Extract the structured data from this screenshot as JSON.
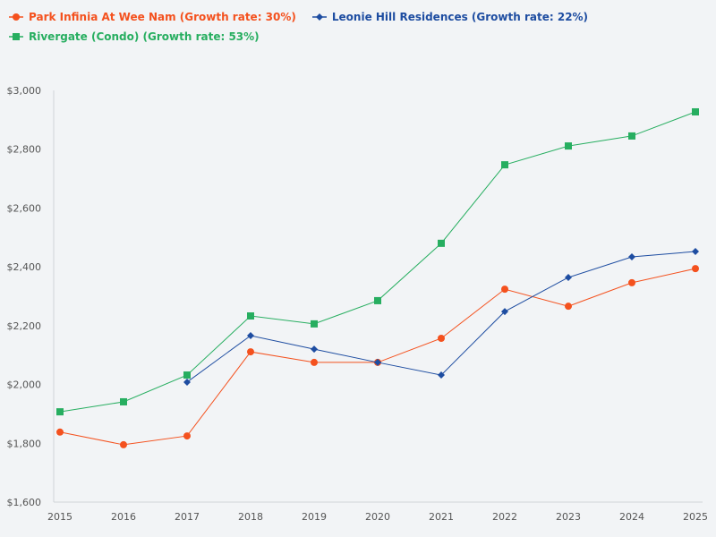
{
  "chart_data": {
    "type": "line",
    "title": "",
    "xlabel": "",
    "ylabel": "",
    "x": [
      2015,
      2016,
      2017,
      2018,
      2019,
      2020,
      2021,
      2022,
      2023,
      2024,
      2025
    ],
    "ylim": [
      1600,
      3000
    ],
    "yticks": [
      1600,
      1800,
      2000,
      2200,
      2400,
      2600,
      2800,
      3000
    ],
    "ytick_labels": [
      "$1,600",
      "$1,800",
      "$2,000",
      "$2,200",
      "$2,400",
      "$2,600",
      "$2,800",
      "$3,000"
    ],
    "xtick_labels": [
      "2015",
      "2016",
      "2017",
      "2018",
      "2019",
      "2020",
      "2021",
      "2022",
      "2023",
      "2024",
      "2025"
    ],
    "grid": false,
    "legend_position": "top-left",
    "series": [
      {
        "name": "Park Infinia At Wee Nam (Growth rate: 30%)",
        "color": "#f4511e",
        "marker": "circle",
        "values": [
          1838,
          1795,
          1825,
          2111,
          2075,
          2075,
          2157,
          2324,
          2266,
          2346,
          2394
        ]
      },
      {
        "name": "Leonie Hill Residences (Growth rate: 22%)",
        "color": "#1e4da1",
        "marker": "diamond",
        "values": [
          null,
          null,
          2008,
          2166,
          2120,
          2075,
          2032,
          2248,
          2364,
          2434,
          2452
        ]
      },
      {
        "name": "Rivergate (Condo) (Growth rate: 53%)",
        "color": "#27ae60",
        "marker": "square",
        "values": [
          1907,
          1941,
          2032,
          2233,
          2206,
          2285,
          2480,
          2747,
          2811,
          2845,
          2927
        ]
      }
    ]
  }
}
